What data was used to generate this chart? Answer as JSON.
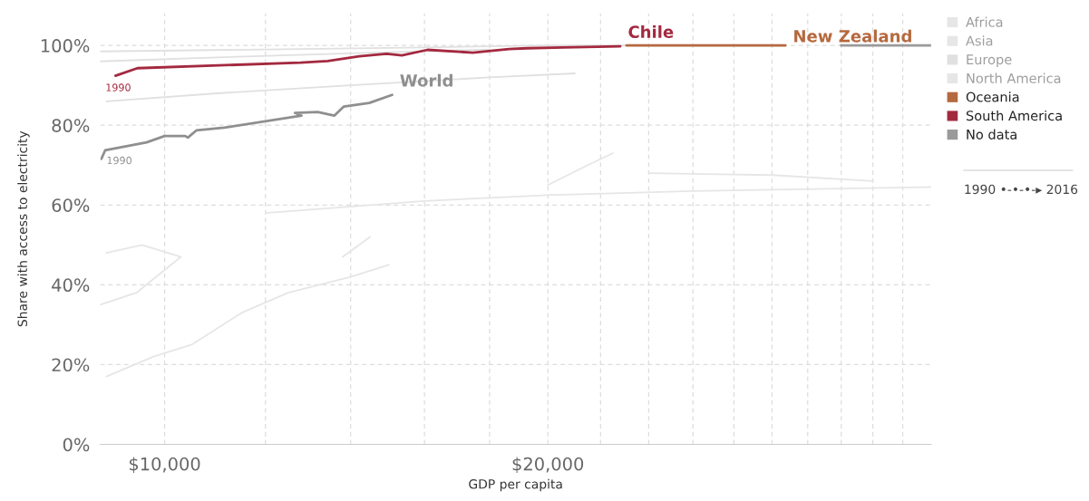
{
  "chart_data": {
    "type": "line",
    "xlabel": "GDP per capita",
    "ylabel": "Share with access to electricity",
    "log": "x",
    "xlim": [
      8900,
      40000
    ],
    "xticks": [
      {
        "value": 10000,
        "label": "$10,000"
      },
      {
        "value": 12000,
        "label": null
      },
      {
        "value": 14000,
        "label": null
      },
      {
        "value": 16000,
        "label": null
      },
      {
        "value": 18000,
        "label": null
      },
      {
        "value": 20000,
        "label": "$20,000"
      },
      {
        "value": 22000,
        "label": null
      },
      {
        "value": 24000,
        "label": null
      },
      {
        "value": 26000,
        "label": null
      },
      {
        "value": 28000,
        "label": null
      },
      {
        "value": 30000,
        "label": null
      },
      {
        "value": 32000,
        "label": null
      },
      {
        "value": 34000,
        "label": null
      },
      {
        "value": 36000,
        "label": null
      },
      {
        "value": 38000,
        "label": null
      }
    ],
    "ylim": [
      0,
      108
    ],
    "yticks": [
      {
        "value": 0,
        "label": "0%"
      },
      {
        "value": 20,
        "label": "20%"
      },
      {
        "value": 40,
        "label": "40%"
      },
      {
        "value": 60,
        "label": "60%"
      },
      {
        "value": 80,
        "label": "80%"
      },
      {
        "value": 100,
        "label": "100%"
      }
    ],
    "grid": true,
    "legend": "top right",
    "line_style": "solid",
    "marker": "none",
    "series": [
      {
        "name": "Africa",
        "color": "#e6e6e6",
        "x": [
          8900,
          9500,
          10300,
          9600,
          9000
        ],
        "values": [
          35,
          38,
          47,
          50,
          48
        ]
      },
      {
        "color": "#e6e6e6",
        "x": [
          9000,
          9800,
          10500,
          11500,
          12500,
          14000,
          15000
        ],
        "values": [
          17,
          22,
          25,
          33,
          38,
          42,
          45
        ]
      },
      {
        "color": "#e6e6e6",
        "x": [
          13800,
          14500
        ],
        "values": [
          47,
          52
        ]
      },
      {
        "name": "Asia",
        "color": "#e6e6e6",
        "x": [
          12000,
          16000,
          20000,
          26000,
          40000
        ],
        "values": [
          58,
          61,
          62.5,
          63.5,
          64.5
        ]
      },
      {
        "color": "#e6e6e6",
        "x": [
          20000,
          21500,
          22500
        ],
        "values": [
          65,
          70,
          73
        ]
      },
      {
        "name": "Europe",
        "color": "#e0e0e0",
        "x": [
          8900,
          12000,
          16000,
          20000,
          24000
        ],
        "values": [
          98.5,
          99,
          99.5,
          100,
          100
        ]
      },
      {
        "color": "#e0e0e0",
        "x": [
          8900,
          11000,
          14000,
          18000
        ],
        "values": [
          96,
          97,
          98,
          99
        ]
      },
      {
        "color": "#e0e0e0",
        "x": [
          9000,
          11000,
          14000,
          18000,
          21000
        ],
        "values": [
          86,
          88,
          90,
          92,
          93
        ]
      },
      {
        "name": "North America",
        "color": "#e6e6e6",
        "x": [
          24000,
          30000,
          36000
        ],
        "values": [
          68,
          67.5,
          66
        ]
      },
      {
        "name": "Oceania",
        "color": "#b5693f",
        "x": [
          23060,
          26000,
          28000,
          30730
        ],
        "values": [
          100,
          100,
          100,
          100
        ]
      },
      {
        "name": "South America",
        "color": "#a3293f",
        "x": [
          9150,
          9520,
          11030,
          12790,
          13430,
          14220,
          14940,
          15360,
          16090,
          17460,
          18650,
          19260,
          20570,
          22800
        ],
        "values": [
          92.4,
          94.3,
          95.0,
          95.7,
          96.1,
          97.3,
          97.9,
          97.5,
          98.9,
          98.2,
          99.1,
          99.3,
          99.5,
          99.8
        ]
      },
      {
        "name": "No data",
        "color": "#9a9a9a",
        "x": [
          34000,
          40000
        ],
        "values": [
          100,
          100
        ]
      },
      {
        "color": "#8f8f8f",
        "x": [
          8920,
          8980,
          9680,
          10000,
          10380,
          10430,
          10590,
          11140,
          12810,
          12660,
          13190,
          13590,
          13830,
          14480,
          15090
        ],
        "values": [
          71.6,
          73.7,
          75.7,
          77.3,
          77.3,
          76.9,
          78.7,
          79.4,
          82.4,
          83.1,
          83.3,
          82.4,
          84.7,
          85.6,
          87.6
        ]
      }
    ],
    "annotations": [
      {
        "text": "Chile",
        "x": 22800,
        "y": 99.8
      },
      {
        "text": "New Zealand",
        "x": 30730,
        "y": 100
      },
      {
        "text": "World",
        "x": 15090,
        "y": 87.6
      },
      {
        "text": "1990",
        "x": 9150,
        "y": 92.4
      },
      {
        "text": "1990",
        "x": 8920,
        "y": 71.6
      },
      "1990 •-•-•-▸ 2016"
    ]
  }
}
